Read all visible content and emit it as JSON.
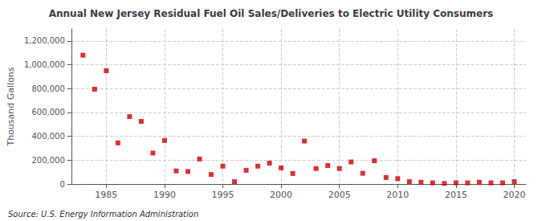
{
  "chart_data": {
    "type": "scatter",
    "title": "Annual New Jersey Residual Fuel Oil Sales/Deliveries to Electric Utility Consumers",
    "ylabel": "Thousand Gallons",
    "annotations": [
      "Source: U.S. Energy Information Administration"
    ],
    "x": [
      1983,
      1984,
      1985,
      1986,
      1987,
      1988,
      1989,
      1990,
      1991,
      1992,
      1993,
      1994,
      1995,
      1996,
      1997,
      1998,
      1999,
      2000,
      2001,
      2002,
      2003,
      2004,
      2005,
      2006,
      2007,
      2008,
      2009,
      2010,
      2011,
      2012,
      2013,
      2014,
      2015,
      2016,
      2017,
      2018,
      2019,
      2020
    ],
    "values": [
      1080000,
      795000,
      950000,
      345000,
      565000,
      525000,
      260000,
      365000,
      110000,
      105000,
      210000,
      80000,
      150000,
      20000,
      115000,
      150000,
      175000,
      135000,
      88000,
      360000,
      130000,
      155000,
      130000,
      185000,
      90000,
      195000,
      55000,
      45000,
      20000,
      15000,
      10000,
      5000,
      10000,
      10000,
      15000,
      10000,
      10000,
      20000
    ],
    "color": "#cc0000",
    "marker": "square",
    "xlim": [
      1982,
      2021
    ],
    "xticks": [
      1985,
      1990,
      1995,
      2000,
      2005,
      2010,
      2015,
      2020
    ],
    "ylim": [
      0,
      1300000
    ],
    "yticks": [
      0,
      {
        "value": 200000,
        "label": "200,000"
      },
      {
        "value": 400000,
        "label": "400,000"
      },
      {
        "value": 600000,
        "label": "600,000"
      },
      {
        "value": 800000,
        "label": "800,000"
      },
      {
        "value": 1000000,
        "label": "1,000,000"
      },
      {
        "value": 1200000,
        "label": "1,200,000"
      }
    ],
    "grid": true
  }
}
